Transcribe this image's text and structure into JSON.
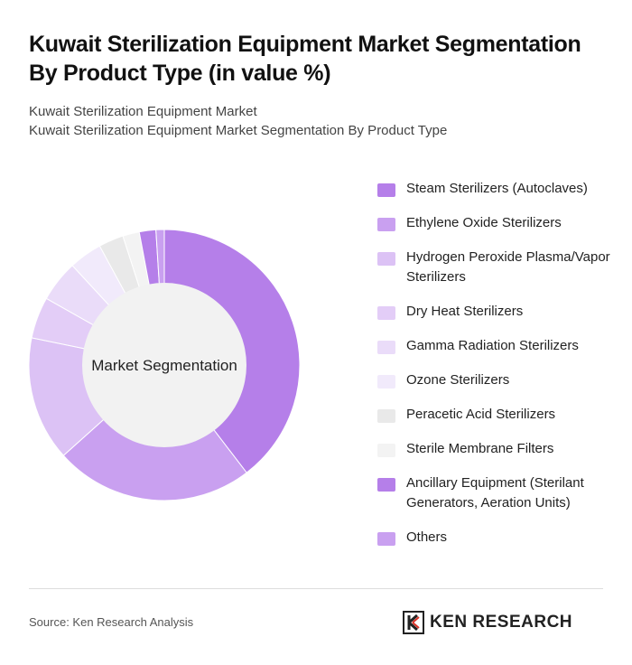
{
  "header": {
    "title": "Kuwait Sterilization Equipment Market Segmentation By Product Type (in value %)",
    "subtitle_line1": "Kuwait Sterilization Equipment Market",
    "subtitle_line2": "Kuwait Sterilization Equipment Market Segmentation By Product Type"
  },
  "chart_data": {
    "type": "pie",
    "donut": true,
    "center_label": "Market Segmentation",
    "legend_position": "right",
    "categories": [
      "Steam Sterilizers (Autoclaves)",
      "Ethylene Oxide Sterilizers",
      "Hydrogen Peroxide Plasma/Vapor Sterilizers",
      "Dry Heat Sterilizers",
      "Gamma Radiation Sterilizers",
      "Ozone Sterilizers",
      "Peracetic Acid Sterilizers",
      "Sterile Membrane Filters",
      "Ancillary Equipment (Sterilant Generators, Aeration Units)",
      "Others"
    ],
    "values": [
      40,
      24,
      15,
      5,
      5,
      4,
      3,
      2,
      2,
      1
    ],
    "colors": [
      "#b57fe9",
      "#c9a0f0",
      "#dcc2f5",
      "#e3cdf7",
      "#eadcf9",
      "#f1eafb",
      "#e9e9e9",
      "#f3f3f3",
      "#b57fe9",
      "#c9a0f0"
    ]
  },
  "footer": {
    "source": "Source: Ken Research Analysis",
    "brand": "KEN RESEARCH"
  }
}
